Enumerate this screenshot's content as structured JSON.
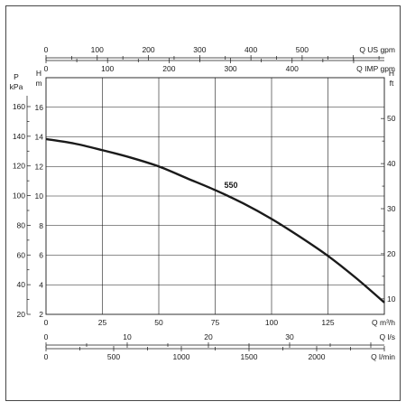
{
  "chart_data": {
    "type": "line",
    "title": "",
    "x": [
      0,
      12.5,
      25,
      37.5,
      50,
      62.5,
      75,
      87.5,
      100,
      112.5,
      125,
      137.5,
      150
    ],
    "series": [
      {
        "name": "550",
        "values": [
          13.85,
          13.55,
          13.1,
          12.6,
          12.0,
          11.2,
          10.4,
          9.5,
          8.45,
          7.25,
          5.95,
          4.45,
          2.8
        ]
      }
    ],
    "xlabel": "Q m³/h",
    "ylabel": "H m",
    "xlim": [
      0,
      150
    ],
    "ylim": [
      2,
      18
    ],
    "grid": true,
    "x_ticks": [
      "0",
      "25",
      "50",
      "75",
      "100",
      "125"
    ],
    "y_ticks": [
      "2",
      "4",
      "6",
      "8",
      "10",
      "12",
      "14",
      "16"
    ],
    "axes": {
      "pressure": {
        "label_line1": "P",
        "label_line2": "kPa",
        "ticks": [
          "20",
          "40",
          "60",
          "80",
          "100",
          "120",
          "140",
          "160"
        ],
        "range": [
          20,
          160
        ]
      },
      "head_m": {
        "label_line1": "H",
        "label_line2": "m"
      },
      "head_ft": {
        "label_line1": "H",
        "label_line2": "ft",
        "ticks": [
          "10",
          "20",
          "30",
          "40",
          "50"
        ],
        "range": [
          10,
          50
        ]
      },
      "flow_us_gpm": {
        "label": "Q US gpm",
        "ticks": [
          "0",
          "100",
          "200",
          "300",
          "400",
          "500"
        ],
        "max": 500
      },
      "flow_imp_gpm": {
        "label": "Q IMP gpm",
        "ticks": [
          "0",
          "100",
          "200",
          "300",
          "400"
        ],
        "max": 400
      },
      "flow_ls": {
        "label": "Q l/s",
        "ticks": [
          "0",
          "10",
          "20",
          "30"
        ],
        "max": 30
      },
      "flow_lmin": {
        "label": "Q l/min",
        "ticks": [
          "0",
          "500",
          "1000",
          "1500",
          "2000"
        ],
        "max": 2000
      }
    }
  }
}
